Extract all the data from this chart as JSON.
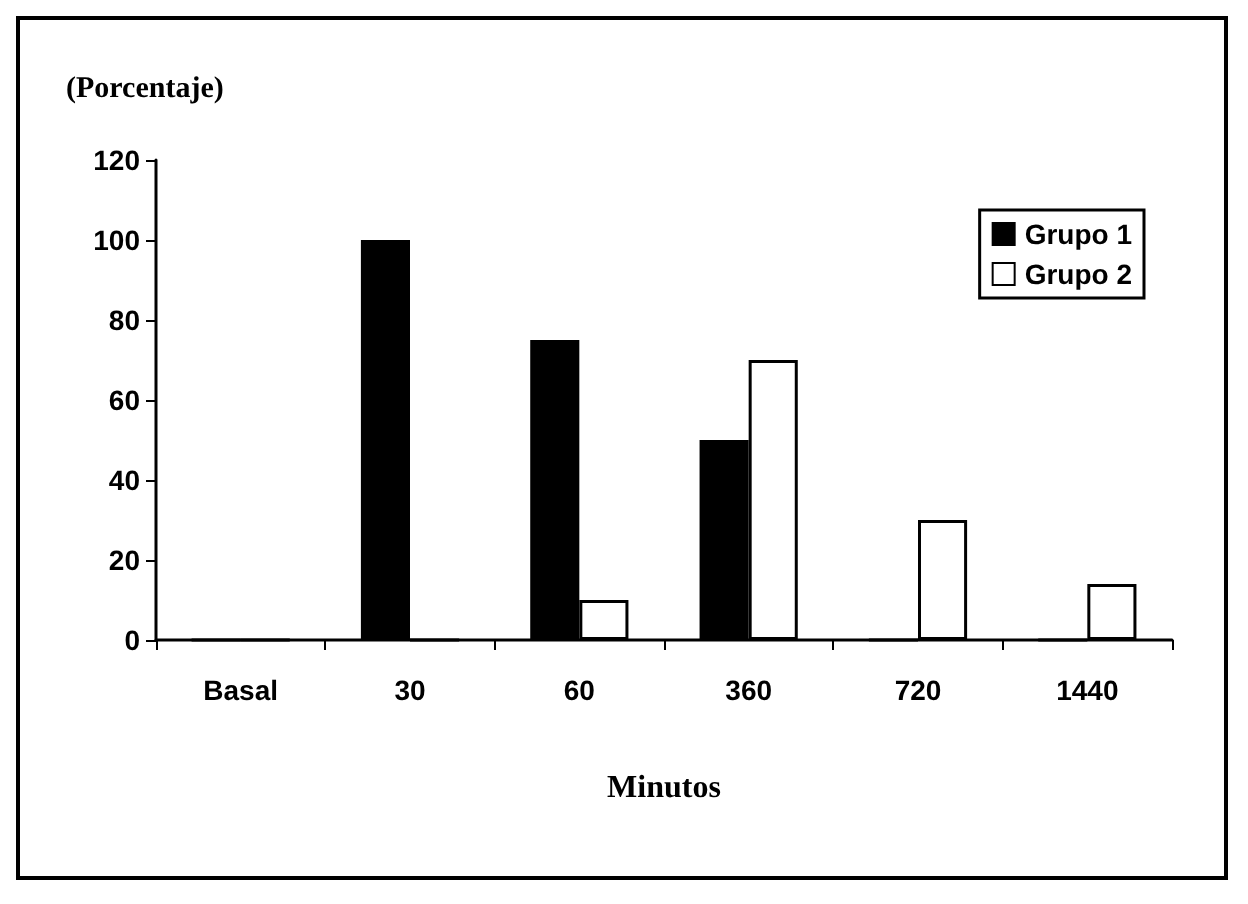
{
  "chart_data": {
    "type": "bar",
    "ylabel": "(Porcentaje)",
    "xlabel": "Minutos",
    "categories": [
      "Basal",
      "30",
      "60",
      "360",
      "720",
      "1440"
    ],
    "series": [
      {
        "name": "Grupo 1",
        "color": "#000000",
        "values": [
          0,
          100,
          75,
          50,
          0,
          0
        ]
      },
      {
        "name": "Grupo 2",
        "color": "#ffffff",
        "values": [
          0,
          0,
          10,
          70,
          30,
          14
        ]
      }
    ],
    "ylim": [
      0,
      120
    ],
    "yticks": [
      0,
      20,
      40,
      60,
      80,
      100,
      120
    ],
    "grid": false,
    "legend": "top right"
  }
}
